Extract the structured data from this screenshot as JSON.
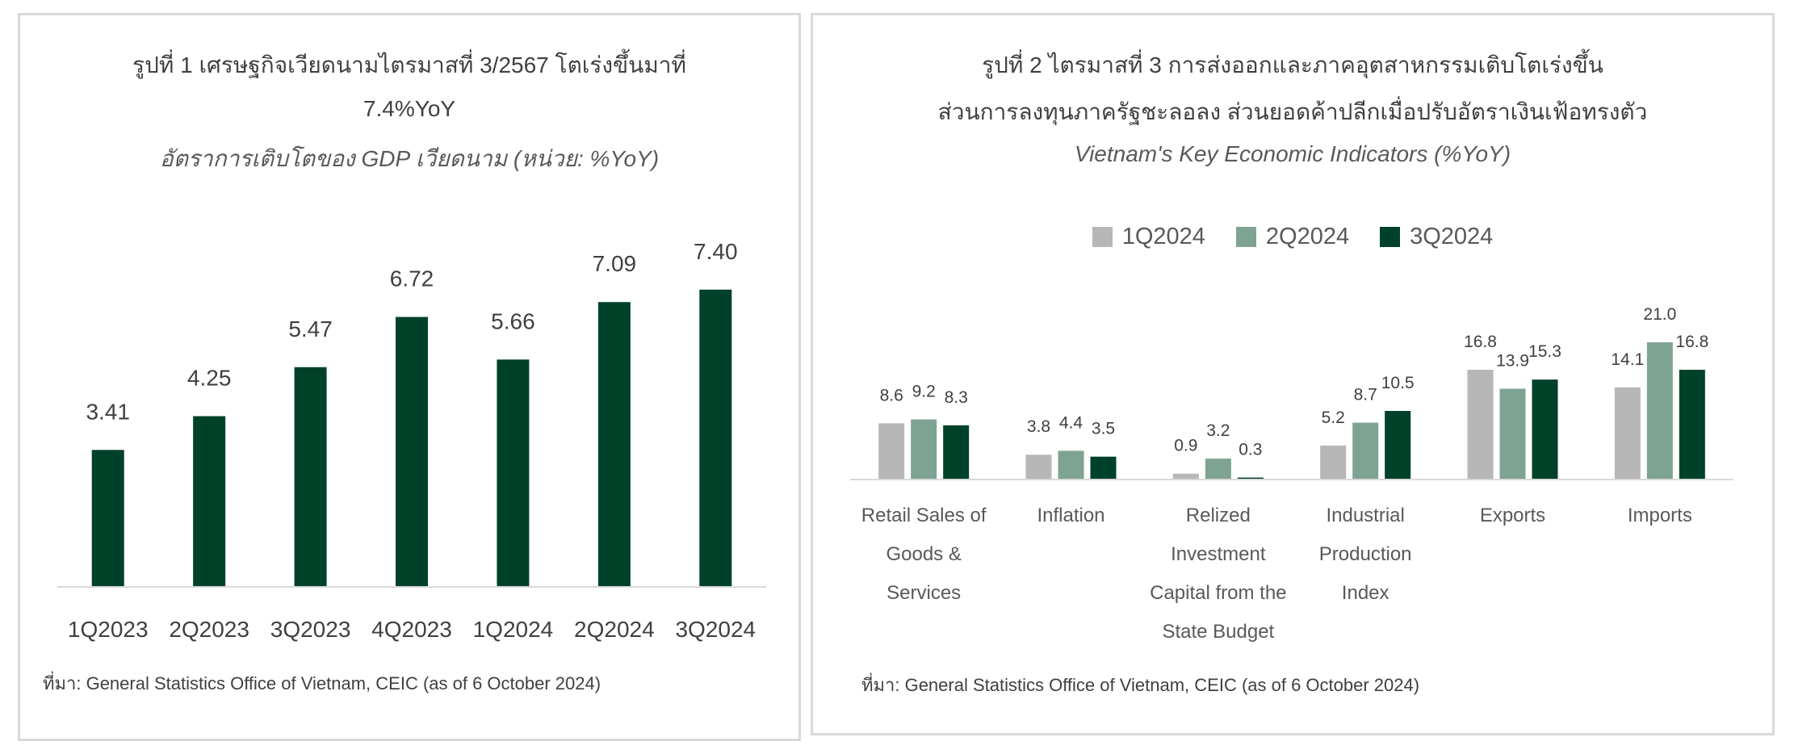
{
  "figure1": {
    "title_line1": "รูปที่ 1 เศรษฐกิจเวียดนามไตรมาสที่ 3/2567 โตเร่งขึ้นมาที่",
    "title_line2": "7.4%YoY",
    "subtitle": "อัตราการเติบโตของ GDP เวียดนาม (หน่วย: %YoY)",
    "source": "ที่มา: General Statistics Office of Vietnam, CEIC (as of 6 October 2024)",
    "bar_color": "#004129"
  },
  "figure2": {
    "title_line1": "รูปที่ 2 ไตรมาสที่ 3 การส่งออกและภาคอุตสาหกรรมเติบโตเร่งขึ้น",
    "title_line2": "ส่วนการลงทุนภาครัฐชะลอลง ส่วนยอดค้าปลีกเมื่อปรับอัตราเงินเฟ้อทรงตัว",
    "subtitle": "Vietnam's Key Economic Indicators (%YoY)",
    "source": "ที่มา: General Statistics Office of Vietnam, CEIC (as of 6 October 2024)"
  },
  "chart_data": [
    {
      "type": "bar",
      "categories": [
        "1Q2023",
        "2Q2023",
        "3Q2023",
        "4Q2023",
        "1Q2024",
        "2Q2024",
        "3Q2024"
      ],
      "values": [
        3.41,
        4.25,
        5.47,
        6.72,
        5.66,
        7.09,
        7.4
      ],
      "labels": [
        "3.41",
        "4.25",
        "5.47",
        "6.72",
        "5.66",
        "7.09",
        "7.40"
      ],
      "title": "รูปที่ 1 เศรษฐกิจเวียดนามไตรมาสที่ 3/2567 โตเร่งขึ้นมาที่ 7.4%YoY",
      "xlabel": "",
      "ylabel": "",
      "ylim": [
        0,
        8.4
      ],
      "grid": false
    },
    {
      "type": "bar",
      "categories": [
        [
          "Retail Sales of",
          "Goods &",
          "Services"
        ],
        [
          "Inflation"
        ],
        [
          "Relized",
          "Investment",
          "Capital from the",
          "State Budget"
        ],
        [
          "Industrial",
          "Production",
          "Index"
        ],
        [
          "Exports"
        ],
        [
          "Imports"
        ]
      ],
      "series": [
        {
          "name": "1Q2024",
          "color": "#b7b7b7",
          "values": [
            8.6,
            3.8,
            0.9,
            5.2,
            16.8,
            14.1
          ],
          "labels": [
            "8.6",
            "3.8",
            "0.9",
            "5.2",
            "16.8",
            "14.1"
          ]
        },
        {
          "name": "2Q2024",
          "color": "#7fa393",
          "values": [
            9.2,
            4.4,
            3.2,
            8.7,
            13.9,
            21.0
          ],
          "labels": [
            "9.2",
            "4.4",
            "3.2",
            "8.7",
            "13.9",
            "21.0"
          ]
        },
        {
          "name": "3Q2024",
          "color": "#004129",
          "values": [
            8.3,
            3.5,
            0.3,
            10.5,
            15.3,
            16.8
          ],
          "labels": [
            "8.3",
            "3.5",
            "0.3",
            "10.5",
            "15.3",
            "16.8"
          ]
        }
      ],
      "title": "Vietnam's Key Economic Indicators (%YoY)",
      "xlabel": "",
      "ylabel": "",
      "ylim": [
        0,
        30
      ],
      "legend": "top-center",
      "grid": false
    }
  ]
}
